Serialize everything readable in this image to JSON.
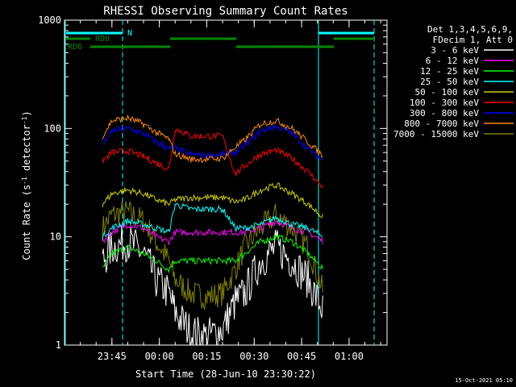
{
  "title": "RHESSI Observing Summary Count Rates",
  "xlabel": "Start Time (28-Jun-10 23:30:22)",
  "ylabel_main": "Count Rate (s",
  "ylabel_sup": "-1",
  "ylabel_tail": " detector",
  "ylabel_close": ")",
  "timestamp": "15-Oct-2021 05:10",
  "legend": {
    "header1": "Det 1,3,4,5,6,9,",
    "header2": "FDecim 1, Att 0"
  },
  "flags": {
    "n_label": "N",
    "rd0_label": "RD0",
    "rd6_label": "RD6",
    "n_color": "#00ffff",
    "rd_color": "#008800"
  },
  "chart_data": {
    "type": "line",
    "title": "RHESSI Observing Summary Count Rates",
    "xlabel": "Start Time (28-Jun-10 23:30:22)",
    "ylabel": "Count Rate (s^-1 detector^-1)",
    "yscale": "log",
    "ylim": [
      1,
      1000
    ],
    "xlim": [
      "23:30",
      "01:12"
    ],
    "x_ticks": [
      "23:45",
      "00:00",
      "00:15",
      "00:30",
      "00:45",
      "01:00"
    ],
    "y_ticks": [
      "1",
      "10",
      "100",
      "1000"
    ],
    "x": [
      "23:42",
      "23:45",
      "23:50",
      "23:55",
      "23:59",
      "00:03",
      "00:05",
      "00:10",
      "00:15",
      "00:20",
      "00:24",
      "00:27",
      "00:32",
      "00:37",
      "00:42",
      "00:47",
      "00:52"
    ],
    "series": [
      {
        "name": "3 - 6 keV",
        "color": "#ffffff",
        "values": [
          6,
          8,
          9,
          7,
          4,
          3,
          2,
          1.3,
          1.2,
          1.4,
          2.5,
          3,
          6,
          8,
          6,
          4,
          2
        ]
      },
      {
        "name": "6 - 12 keV",
        "color": "#ff00ff",
        "values": [
          9,
          11,
          13,
          12,
          10,
          9,
          11,
          11,
          11,
          11,
          11,
          11,
          12,
          14,
          12,
          11,
          9
        ]
      },
      {
        "name": "12 - 25 keV",
        "color": "#00ff00",
        "values": [
          5,
          7,
          8,
          7,
          6,
          5,
          6,
          6,
          6,
          6,
          6,
          7,
          9,
          10,
          9,
          7,
          5
        ]
      },
      {
        "name": "25 - 50 keV",
        "color": "#00ffff",
        "values": [
          10,
          12,
          14,
          13,
          12,
          11,
          20,
          18,
          18,
          18,
          12,
          12,
          13,
          15,
          13,
          12,
          10
        ]
      },
      {
        "name": "50 - 100 keV",
        "color": "#cccc00",
        "values": [
          20,
          25,
          27,
          25,
          22,
          20,
          22,
          23,
          23,
          23,
          21,
          22,
          27,
          30,
          25,
          20,
          15
        ]
      },
      {
        "name": "100 - 300 keV",
        "color": "#ff0000",
        "values": [
          50,
          60,
          62,
          55,
          48,
          42,
          100,
          85,
          85,
          85,
          38,
          45,
          58,
          63,
          53,
          40,
          28
        ]
      },
      {
        "name": "300 - 800 keV",
        "color": "#0000ff",
        "values": [
          70,
          95,
          100,
          90,
          75,
          65,
          65,
          58,
          56,
          58,
          60,
          70,
          95,
          105,
          90,
          65,
          50
        ]
      },
      {
        "name": "800 - 7000 keV",
        "color": "#ff8800",
        "values": [
          85,
          118,
          125,
          110,
          92,
          80,
          58,
          52,
          52,
          53,
          67,
          78,
          110,
          118,
          100,
          75,
          55
        ]
      },
      {
        "name": "7000 - 15000 keV",
        "color": "#808000",
        "values": [
          12,
          16,
          17,
          14,
          9,
          6,
          4,
          3,
          2.8,
          3,
          5,
          8,
          12,
          16,
          12,
          8,
          3
        ]
      }
    ],
    "grid": false,
    "legend_position": "right"
  }
}
